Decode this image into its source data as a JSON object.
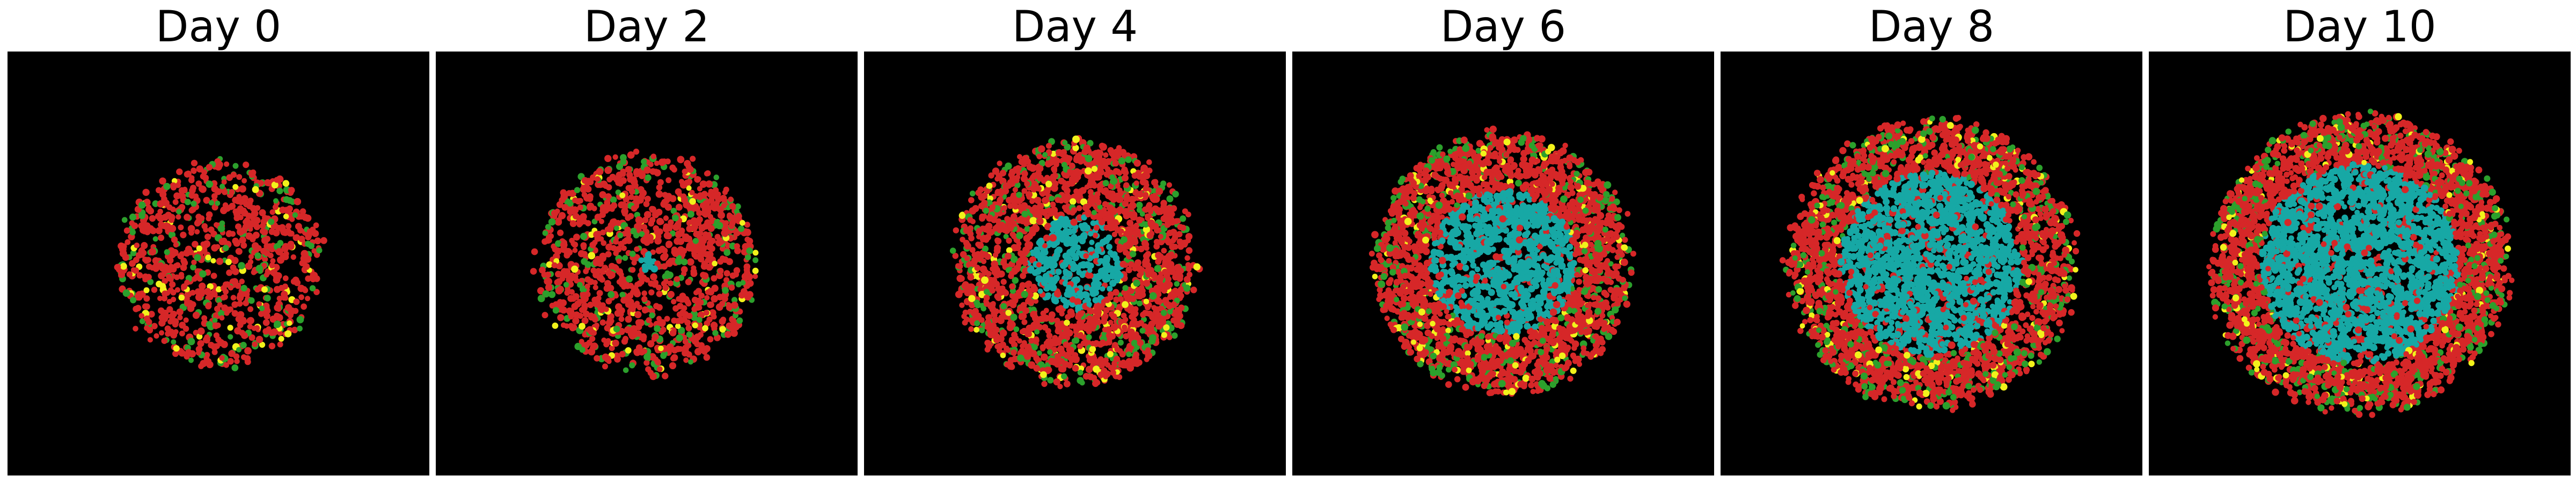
{
  "colors": {
    "background": "#000000",
    "red": "#d62728",
    "green": "#2ca02c",
    "yellow": "#f2f21b",
    "cyan": "#17a8a5"
  },
  "panels": [
    {
      "title": "Day 0",
      "spread": 0.6,
      "core": 0.0,
      "density": 1.0
    },
    {
      "title": "Day 2",
      "spread": 0.64,
      "core": 0.06,
      "density": 1.4
    },
    {
      "title": "Day 4",
      "spread": 0.7,
      "core": 0.28,
      "density": 2.4
    },
    {
      "title": "Day 6",
      "spread": 0.75,
      "core": 0.43,
      "density": 3.4
    },
    {
      "title": "Day 8",
      "spread": 0.83,
      "core": 0.54,
      "density": 4.2
    },
    {
      "title": "Day 10",
      "spread": 0.86,
      "core": 0.59,
      "density": 4.8
    }
  ]
}
